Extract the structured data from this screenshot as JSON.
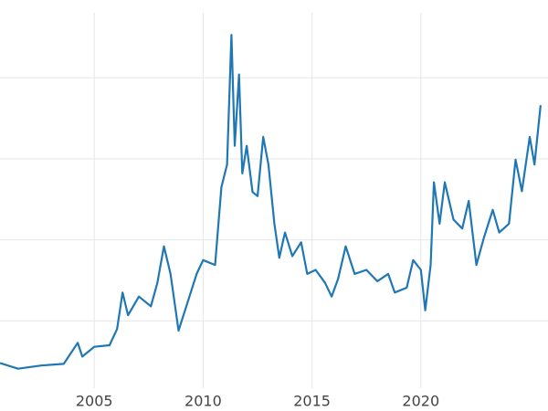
{
  "chart_data": {
    "type": "line",
    "x": [
      2000.67,
      2001.5,
      2002.56,
      2003.6,
      2004.24,
      2004.45,
      2005.0,
      2005.7,
      2006.05,
      2006.3,
      2006.55,
      2007.05,
      2007.6,
      2007.9,
      2008.2,
      2008.5,
      2008.87,
      2009.3,
      2009.7,
      2010.0,
      2010.55,
      2010.84,
      2011.1,
      2011.3,
      2011.45,
      2011.65,
      2011.8,
      2012.0,
      2012.27,
      2012.5,
      2012.76,
      2013.0,
      2013.27,
      2013.5,
      2013.76,
      2014.1,
      2014.5,
      2014.78,
      2015.17,
      2015.6,
      2015.9,
      2016.2,
      2016.55,
      2016.96,
      2017.5,
      2018.0,
      2018.5,
      2018.8,
      2019.35,
      2019.65,
      2020.0,
      2020.2,
      2020.45,
      2020.6,
      2020.86,
      2021.1,
      2021.5,
      2021.9,
      2022.2,
      2022.55,
      2022.9,
      2023.3,
      2023.6,
      2024.05,
      2024.35,
      2024.64,
      2025.0,
      2025.22,
      2025.5
    ],
    "series": [
      {
        "color": "#1f77b4",
        "values": [
          4.8,
          4.1,
          4.5,
          4.7,
          7.3,
          5.6,
          6.8,
          7.0,
          9.0,
          13.5,
          10.7,
          13.0,
          11.8,
          14.7,
          19.2,
          15.8,
          8.8,
          12.4,
          15.8,
          17.5,
          16.9,
          26.5,
          29.3,
          45.3,
          31.6,
          40.4,
          28.2,
          31.6,
          25.9,
          25.4,
          32.7,
          29.3,
          22.0,
          17.8,
          20.9,
          18.0,
          19.7,
          15.8,
          16.3,
          14.7,
          13.0,
          15.2,
          19.2,
          15.8,
          16.3,
          14.9,
          15.8,
          13.5,
          14.1,
          17.5,
          16.3,
          11.3,
          16.9,
          27.1,
          22.0,
          27.1,
          22.5,
          21.4,
          24.8,
          16.9,
          20.3,
          23.7,
          20.9,
          22.0,
          29.9,
          26.0,
          32.7,
          29.3,
          36.6
        ]
      }
    ],
    "xlim": [
      2000.67,
      2025.84
    ],
    "xticks": [
      2005,
      2010,
      2015,
      2020
    ],
    "ylim": [
      1.7,
      49.6
    ],
    "yticks": [
      10,
      20,
      30,
      40
    ],
    "ytick_labels": false,
    "grid": true
  }
}
